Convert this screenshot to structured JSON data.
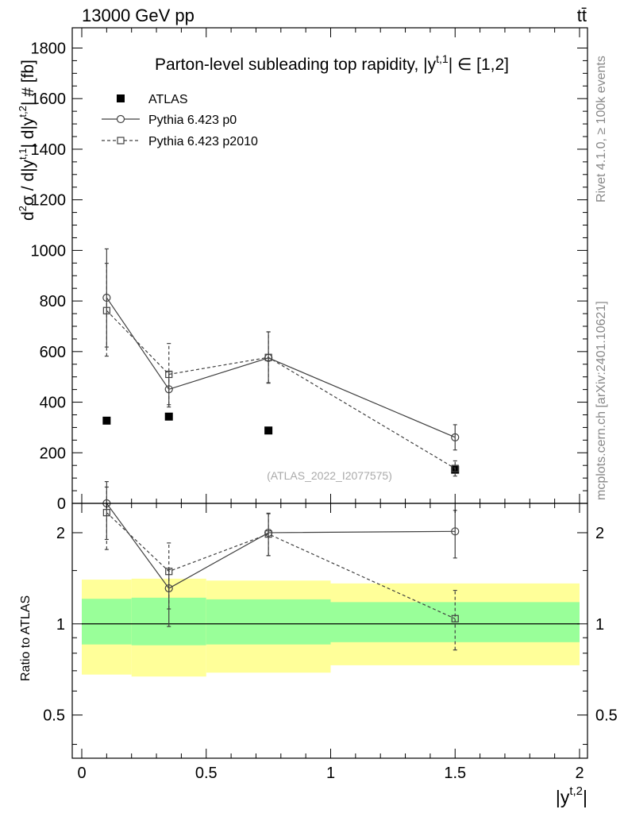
{
  "header": {
    "left": "13000 GeV pp",
    "right": "tt̄"
  },
  "side_labels": {
    "rivet": "Rivet 4.1.0, ≥ 100k events",
    "mcplots": "mcplots.cern.ch [arXiv:2401.10621]"
  },
  "chart_data": [
    {
      "panel": "main",
      "type": "line",
      "title": "Parton-level subleading top rapidity, |y^{t,1}| ∈ [1,2]",
      "ylabel": "d²σ / d|y^{t,1}| d|y^{t,2}| # [fb]",
      "xlabel": "|y^{t,2}|",
      "xlim": [
        0,
        2
      ],
      "ylim": [
        0,
        1880
      ],
      "yticks": [
        0,
        200,
        400,
        600,
        800,
        1000,
        1200,
        1400,
        1600,
        1800
      ],
      "annotation": "(ATLAS_2022_I2077575)",
      "legend_position": "top-left",
      "x": [
        0.1,
        0.35,
        0.75,
        1.5
      ],
      "series": [
        {
          "name": "ATLAS",
          "marker": "filled-square",
          "style": "points",
          "values": [
            327,
            343,
            288,
            133
          ],
          "err_low": [
            0,
            0,
            0,
            0
          ],
          "err_high": [
            0,
            0,
            0,
            0
          ]
        },
        {
          "name": "Pythia 6.423 p0",
          "marker": "open-circle",
          "style": "solid",
          "values": [
            813,
            451,
            575,
            261
          ],
          "err_low": [
            195,
            70,
            100,
            50
          ],
          "err_high": [
            193,
            70,
            103,
            50
          ]
        },
        {
          "name": "Pythia 6.423 p2010",
          "marker": "open-square",
          "style": "dashed",
          "values": [
            762,
            510,
            577,
            138
          ],
          "err_low": [
            180,
            120,
            100,
            30
          ],
          "err_high": [
            187,
            122,
            101,
            30
          ]
        }
      ]
    },
    {
      "panel": "ratio",
      "type": "line",
      "ylabel": "Ratio to ATLAS",
      "xlabel": "|y^{t,2}|",
      "xlim": [
        0,
        2
      ],
      "ylim": [
        0.36,
        2.5
      ],
      "scale": "log",
      "yticks_left": [
        "0.5",
        "1",
        "2"
      ],
      "yticks_right": [
        "0.5",
        "1",
        "2"
      ],
      "xticks": [
        "0",
        "0.5",
        "1",
        "1.5",
        "2"
      ],
      "reference": 1,
      "bands": [
        {
          "x0": 0.0,
          "x1": 0.2,
          "inner": [
            0.855,
            1.21
          ],
          "outer": [
            0.68,
            1.4
          ]
        },
        {
          "x0": 0.2,
          "x1": 0.5,
          "inner": [
            0.85,
            1.22
          ],
          "outer": [
            0.67,
            1.41
          ]
        },
        {
          "x0": 0.5,
          "x1": 1.0,
          "inner": [
            0.855,
            1.205
          ],
          "outer": [
            0.69,
            1.39
          ]
        },
        {
          "x0": 1.0,
          "x1": 2.0,
          "inner": [
            0.87,
            1.18
          ],
          "outer": [
            0.73,
            1.36
          ]
        }
      ],
      "x": [
        0.1,
        0.35,
        0.75,
        1.5
      ],
      "series": [
        {
          "name": "Pythia 6.423 p0",
          "style": "solid",
          "marker": "open-circle",
          "values": [
            2.5,
            1.31,
            2.0,
            2.02
          ],
          "err_low": [
            0.6,
            0.33,
            0.32,
            0.37
          ],
          "err_high": [
            0.45,
            0.2,
            0.32,
            0.35
          ]
        },
        {
          "name": "Pythia 6.423 p2010",
          "style": "dashed",
          "marker": "open-square",
          "values": [
            2.33,
            1.49,
            1.98,
            1.04
          ],
          "err_low": [
            0.57,
            0.37,
            0.3,
            0.22
          ],
          "err_high": [
            0.5,
            0.36,
            0.33,
            0.25
          ]
        }
      ]
    }
  ]
}
